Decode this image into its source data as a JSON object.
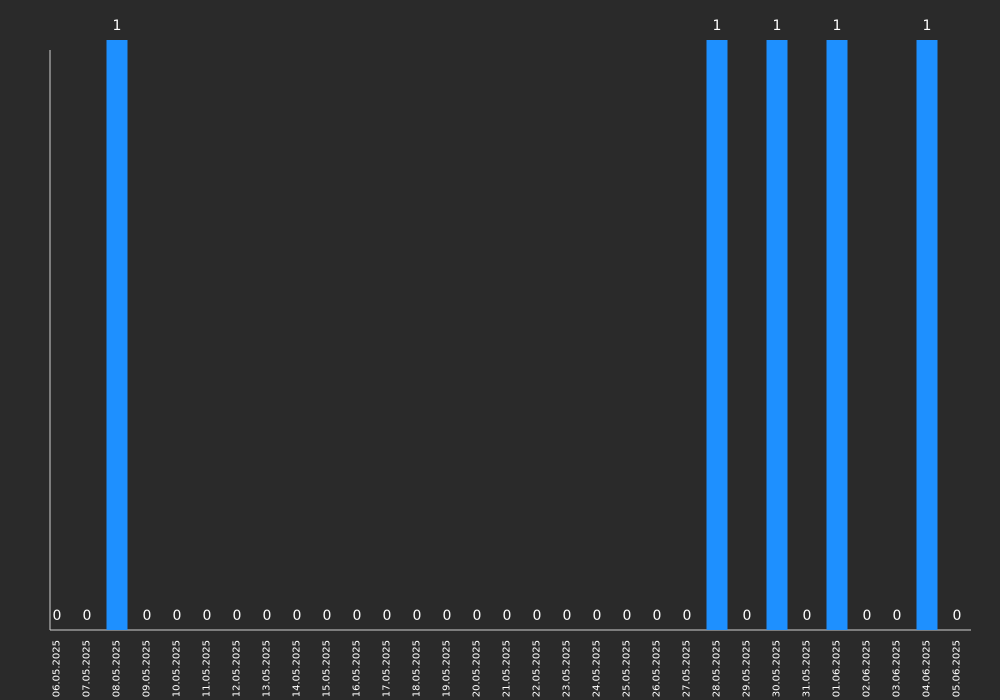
{
  "chart_data": {
    "type": "bar",
    "categories": [
      "06.05.2025",
      "07.05.2025",
      "08.05.2025",
      "09.05.2025",
      "10.05.2025",
      "11.05.2025",
      "12.05.2025",
      "13.05.2025",
      "14.05.2025",
      "15.05.2025",
      "16.05.2025",
      "17.05.2025",
      "18.05.2025",
      "19.05.2025",
      "20.05.2025",
      "21.05.2025",
      "22.05.2025",
      "23.05.2025",
      "24.05.2025",
      "25.05.2025",
      "26.05.2025",
      "27.05.2025",
      "28.05.2025",
      "29.05.2025",
      "30.05.2025",
      "31.05.2025",
      "01.06.2025",
      "02.06.2025",
      "03.06.2025",
      "04.06.2025",
      "05.06.2025"
    ],
    "values": [
      0,
      0,
      1,
      0,
      0,
      0,
      0,
      0,
      0,
      0,
      0,
      0,
      0,
      0,
      0,
      0,
      0,
      0,
      0,
      0,
      0,
      0,
      1,
      0,
      1,
      0,
      1,
      0,
      0,
      1,
      0
    ],
    "title": "",
    "xlabel": "",
    "ylabel": "",
    "ylim": [
      0,
      1
    ],
    "grid": false,
    "legend": "none",
    "bar_color": "#1e90ff",
    "background_color": "#2a2a2a",
    "text_color": "#ffffff",
    "axis_color": "#d0d0d0"
  }
}
